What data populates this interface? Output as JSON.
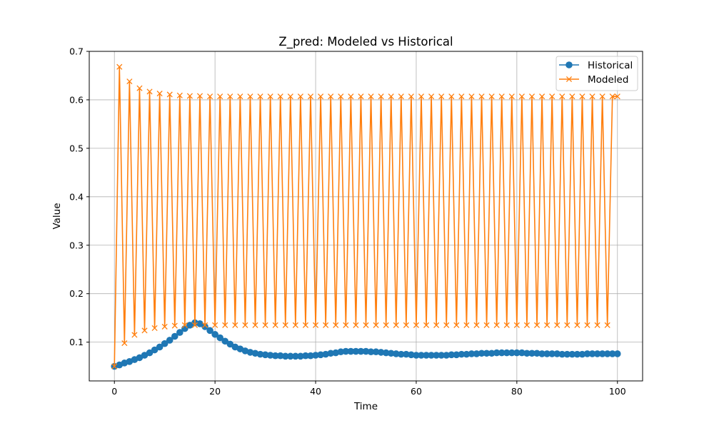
{
  "chart_data": {
    "type": "line",
    "title": "Z_pred: Modeled vs Historical",
    "xlabel": "Time",
    "ylabel": "Value",
    "xlim": [
      -5,
      105
    ],
    "ylim": [
      0.02,
      0.7
    ],
    "xticks": [
      0,
      20,
      40,
      60,
      80,
      100
    ],
    "yticks": [
      0.1,
      0.2,
      0.3,
      0.4,
      0.5,
      0.6,
      0.7
    ],
    "xtick_labels": [
      "0",
      "20",
      "40",
      "60",
      "80",
      "100"
    ],
    "ytick_labels": [
      "0.1",
      "0.2",
      "0.3",
      "0.4",
      "0.5",
      "0.6",
      "0.7"
    ],
    "grid": true,
    "legend_position": "top-right",
    "series": [
      {
        "name": "Historical",
        "color": "#1f77b4",
        "marker": "circle",
        "x": [
          0,
          1,
          2,
          3,
          4,
          5,
          6,
          7,
          8,
          9,
          10,
          11,
          12,
          13,
          14,
          15,
          16,
          17,
          18,
          19,
          20,
          21,
          22,
          23,
          24,
          25,
          26,
          27,
          28,
          29,
          30,
          31,
          32,
          33,
          34,
          35,
          36,
          37,
          38,
          39,
          40,
          41,
          42,
          43,
          44,
          45,
          46,
          47,
          48,
          49,
          50,
          51,
          52,
          53,
          54,
          55,
          56,
          57,
          58,
          59,
          60,
          61,
          62,
          63,
          64,
          65,
          66,
          67,
          68,
          69,
          70,
          71,
          72,
          73,
          74,
          75,
          76,
          77,
          78,
          79,
          80,
          81,
          82,
          83,
          84,
          85,
          86,
          87,
          88,
          89,
          90,
          91,
          92,
          93,
          94,
          95,
          96,
          97,
          98,
          99,
          100
        ],
        "values": [
          0.05,
          0.053,
          0.057,
          0.06,
          0.064,
          0.068,
          0.073,
          0.078,
          0.084,
          0.09,
          0.097,
          0.104,
          0.112,
          0.12,
          0.128,
          0.135,
          0.14,
          0.138,
          0.132,
          0.124,
          0.116,
          0.109,
          0.102,
          0.096,
          0.09,
          0.086,
          0.082,
          0.079,
          0.077,
          0.075,
          0.074,
          0.073,
          0.072,
          0.072,
          0.071,
          0.071,
          0.071,
          0.071,
          0.072,
          0.072,
          0.073,
          0.074,
          0.075,
          0.077,
          0.078,
          0.08,
          0.081,
          0.081,
          0.081,
          0.081,
          0.081,
          0.08,
          0.08,
          0.079,
          0.078,
          0.077,
          0.076,
          0.075,
          0.075,
          0.074,
          0.073,
          0.073,
          0.073,
          0.073,
          0.073,
          0.073,
          0.073,
          0.074,
          0.074,
          0.075,
          0.075,
          0.076,
          0.076,
          0.077,
          0.077,
          0.077,
          0.078,
          0.078,
          0.078,
          0.078,
          0.078,
          0.078,
          0.077,
          0.077,
          0.077,
          0.076,
          0.076,
          0.076,
          0.076,
          0.075,
          0.075,
          0.075,
          0.075,
          0.075,
          0.076,
          0.076,
          0.076,
          0.076,
          0.076,
          0.076,
          0.076
        ]
      },
      {
        "name": "Modeled",
        "color": "#ff7f0e",
        "marker": "x",
        "x": [
          0,
          1,
          2,
          3,
          4,
          5,
          6,
          7,
          8,
          9,
          10,
          11,
          12,
          13,
          14,
          15,
          16,
          17,
          18,
          19,
          20,
          21,
          22,
          23,
          24,
          25,
          26,
          27,
          28,
          29,
          30,
          31,
          32,
          33,
          34,
          35,
          36,
          37,
          38,
          39,
          40,
          41,
          42,
          43,
          44,
          45,
          46,
          47,
          48,
          49,
          50,
          51,
          52,
          53,
          54,
          55,
          56,
          57,
          58,
          59,
          60,
          61,
          62,
          63,
          64,
          65,
          66,
          67,
          68,
          69,
          70,
          71,
          72,
          73,
          74,
          75,
          76,
          77,
          78,
          79,
          80,
          81,
          82,
          83,
          84,
          85,
          86,
          87,
          88,
          89,
          90,
          91,
          92,
          93,
          94,
          95,
          96,
          97,
          98,
          99,
          100
        ],
        "values": [
          0.05,
          0.668,
          0.098,
          0.638,
          0.115,
          0.624,
          0.124,
          0.617,
          0.129,
          0.613,
          0.132,
          0.611,
          0.134,
          0.609,
          0.135,
          0.608,
          0.135,
          0.608,
          0.135,
          0.607,
          0.135,
          0.607,
          0.135,
          0.607,
          0.135,
          0.607,
          0.135,
          0.607,
          0.135,
          0.607,
          0.135,
          0.607,
          0.135,
          0.607,
          0.135,
          0.607,
          0.135,
          0.607,
          0.135,
          0.607,
          0.135,
          0.607,
          0.135,
          0.607,
          0.135,
          0.607,
          0.135,
          0.607,
          0.135,
          0.607,
          0.135,
          0.607,
          0.135,
          0.607,
          0.135,
          0.607,
          0.135,
          0.607,
          0.135,
          0.607,
          0.135,
          0.607,
          0.135,
          0.607,
          0.135,
          0.607,
          0.135,
          0.607,
          0.135,
          0.607,
          0.135,
          0.607,
          0.135,
          0.607,
          0.135,
          0.607,
          0.135,
          0.607,
          0.135,
          0.607,
          0.135,
          0.607,
          0.135,
          0.607,
          0.135,
          0.607,
          0.135,
          0.607,
          0.135,
          0.607,
          0.135,
          0.607,
          0.135,
          0.607,
          0.135,
          0.607,
          0.135,
          0.607,
          0.135,
          0.607,
          0.607
        ]
      }
    ]
  }
}
